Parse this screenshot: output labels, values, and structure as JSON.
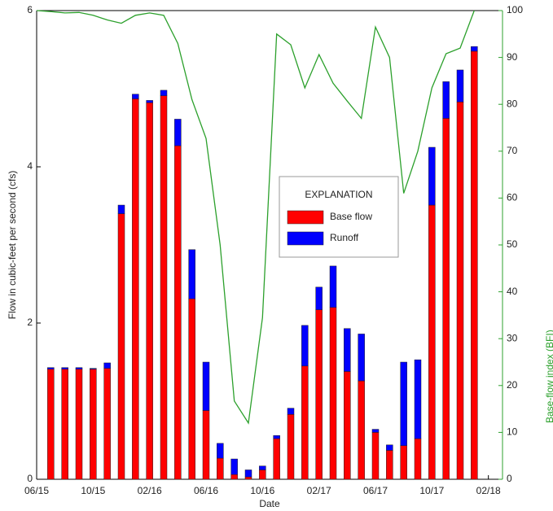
{
  "chart_data": {
    "type": "stacked-bar-line",
    "xlabel": "Date",
    "ylabel": "Flow in cubic-feet per second (cfs)",
    "y2label": "Base-flow index (BFI)",
    "legend_title": "EXPLANATION",
    "x": [
      "07/15",
      "08/15",
      "09/15",
      "10/15",
      "11/15",
      "12/15",
      "01/16",
      "02/16",
      "03/16",
      "04/16",
      "05/16",
      "06/16",
      "07/16",
      "08/16",
      "09/16",
      "10/16",
      "11/16",
      "12/16",
      "01/17",
      "02/17",
      "03/17",
      "04/17",
      "05/17",
      "06/17",
      "07/17",
      "08/17",
      "09/17",
      "10/17",
      "11/17",
      "12/17",
      "01/18"
    ],
    "series": [
      {
        "name": "Base flow",
        "color": "#ff0000",
        "values": [
          1.41,
          1.41,
          1.41,
          1.41,
          1.42,
          3.4,
          4.87,
          4.82,
          4.91,
          4.27,
          2.31,
          0.88,
          0.27,
          0.06,
          0.03,
          0.12,
          0.52,
          0.83,
          1.45,
          2.17,
          2.2,
          1.38,
          1.26,
          0.6,
          0.37,
          0.43,
          0.52,
          3.51,
          4.62,
          4.83,
          5.48
        ]
      },
      {
        "name": "Runoff",
        "color": "#0000ff",
        "values": [
          0.02,
          0.02,
          0.02,
          0.01,
          0.07,
          0.11,
          0.06,
          0.03,
          0.07,
          0.34,
          0.63,
          0.62,
          0.19,
          0.2,
          0.09,
          0.05,
          0.04,
          0.08,
          0.52,
          0.29,
          0.53,
          0.55,
          0.6,
          0.04,
          0.07,
          1.07,
          1.01,
          0.74,
          0.47,
          0.41,
          0.06
        ]
      }
    ],
    "line": {
      "color": "#2ca02c",
      "axis": "y2",
      "x": [
        "06/15",
        "07/15",
        "08/15",
        "09/15",
        "10/15",
        "11/15",
        "12/15",
        "01/16",
        "02/16",
        "03/16",
        "04/16",
        "05/16",
        "06/16",
        "07/16",
        "08/16",
        "09/16",
        "10/16",
        "11/16",
        "12/16",
        "01/17",
        "02/17",
        "03/17",
        "04/17",
        "05/17",
        "06/17",
        "07/17",
        "08/17",
        "09/17",
        "10/17",
        "11/17",
        "12/17",
        "01/18"
      ],
      "values": [
        100,
        99.8,
        99.5,
        99.6,
        99.0,
        98,
        97.3,
        99,
        99.5,
        99,
        93,
        81,
        72.7,
        50,
        16.7,
        12,
        34.5,
        95,
        92.7,
        83.5,
        90.6,
        84.5,
        80.7,
        77,
        96.5,
        90,
        61,
        70,
        83.5,
        90.8,
        92,
        100
      ]
    },
    "xlim": [
      "06/15",
      "03/18"
    ],
    "xticks": [
      "06/15",
      "10/15",
      "02/16",
      "06/16",
      "10/16",
      "02/17",
      "06/17",
      "10/17",
      "02/18"
    ],
    "ylim": [
      0,
      6
    ],
    "yticks": [
      0,
      2,
      4,
      6
    ],
    "y2lim": [
      0,
      100
    ],
    "y2ticks": [
      0,
      10,
      20,
      30,
      40,
      50,
      60,
      70,
      80,
      90,
      100
    ]
  }
}
